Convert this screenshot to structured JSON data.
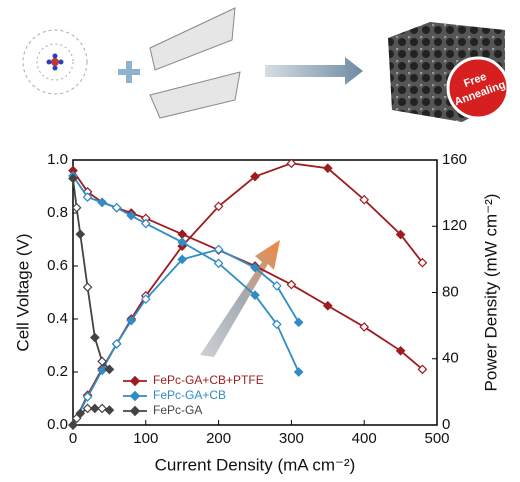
{
  "badge": [
    "Free",
    "Annealing"
  ],
  "chart_data": {
    "type": "polarization",
    "x_label": "Current Density (mA cm⁻²)",
    "y_label": "Cell Voltage (V)",
    "y2_label": "Power Density (mW cm⁻²)",
    "xlim": [
      0,
      500
    ],
    "xticks": [
      0,
      100,
      200,
      300,
      400,
      500
    ],
    "ylim": [
      0,
      1
    ],
    "yticks": [
      {
        "value": 0,
        "label": "0.0"
      },
      0.2,
      0.4,
      0.6,
      0.8,
      {
        "value": 1,
        "label": "1.0"
      }
    ],
    "y2lim": [
      0,
      160
    ],
    "y2ticks": [
      0,
      40,
      80,
      120,
      160
    ],
    "legend": "lower left",
    "series": [
      {
        "name": "FePc-GA+CB+PTFE",
        "color": "#9e1c1f",
        "x": [
          0,
          20,
          40,
          60,
          80,
          100,
          150,
          200,
          250,
          300,
          350,
          400,
          450,
          480
        ],
        "voltage": [
          0.96,
          0.88,
          0.84,
          0.82,
          0.8,
          0.78,
          0.72,
          0.66,
          0.6,
          0.53,
          0.45,
          0.37,
          0.28,
          0.21
        ],
        "power": [
          0,
          18,
          34,
          49,
          64,
          78,
          108,
          132,
          150,
          158,
          155,
          136,
          115,
          98
        ]
      },
      {
        "name": "FePc-GA+CB",
        "color": "#2f8cc4",
        "x": [
          0,
          20,
          40,
          60,
          80,
          100,
          150,
          200,
          250,
          280,
          310
        ],
        "voltage": [
          0.94,
          0.86,
          0.84,
          0.82,
          0.79,
          0.76,
          0.69,
          0.61,
          0.49,
          0.38,
          0.2
        ],
        "power": [
          0,
          17,
          33,
          49,
          63,
          76,
          100,
          106,
          95,
          84,
          62
        ]
      },
      {
        "name": "FePc-GA",
        "color": "#444444",
        "x": [
          0,
          5,
          10,
          20,
          30,
          40,
          50
        ],
        "voltage": [
          0.93,
          0.82,
          0.72,
          0.52,
          0.33,
          0.24,
          0.21
        ],
        "power": [
          0,
          4,
          7,
          10,
          10,
          10,
          9
        ]
      }
    ]
  }
}
